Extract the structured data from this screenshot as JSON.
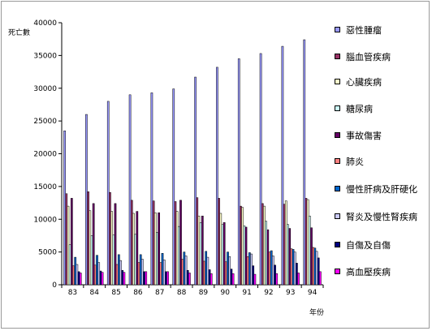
{
  "chart_data": {
    "type": "bar",
    "ylabel": "死亡數",
    "xlabel": "年份",
    "ylim": [
      0,
      40000
    ],
    "yticks": [
      0,
      5000,
      10000,
      15000,
      20000,
      25000,
      30000,
      35000,
      40000
    ],
    "grid": false,
    "legend_position": "right",
    "categories": [
      "83",
      "84",
      "85",
      "86",
      "87",
      "88",
      "89",
      "90",
      "91",
      "92",
      "93",
      "94"
    ],
    "series": [
      {
        "name": "惡性腫瘤",
        "color": "#9999ff",
        "values": [
          23500,
          26000,
          28000,
          29000,
          29300,
          29900,
          31700,
          33200,
          34500,
          35300,
          36400,
          37400
        ]
      },
      {
        "name": "腦血管疾病",
        "color": "#993366",
        "values": [
          13900,
          14200,
          14100,
          12900,
          12800,
          12700,
          13300,
          13200,
          12000,
          12400,
          12300,
          13200
        ]
      },
      {
        "name": "心臟疾病",
        "color": "#ffffcc",
        "values": [
          12000,
          11300,
          11200,
          10900,
          11000,
          11200,
          10500,
          10900,
          11800,
          12000,
          12800,
          13000
        ]
      },
      {
        "name": "糖尿病",
        "color": "#ccffff",
        "values": [
          6100,
          7500,
          7600,
          7700,
          8000,
          8900,
          9500,
          9200,
          9000,
          9700,
          9200,
          10500
        ]
      },
      {
        "name": "事故傷害",
        "color": "#660066",
        "values": [
          13200,
          12400,
          12400,
          11200,
          11000,
          12900,
          10500,
          9500,
          8800,
          8400,
          8600,
          8700
        ]
      },
      {
        "name": "肺炎",
        "color": "#ff8080",
        "values": [
          2900,
          3000,
          3100,
          3400,
          3400,
          3900,
          3600,
          3500,
          4300,
          5000,
          5500,
          5700
        ]
      },
      {
        "name": "慢性肝病及肝硬化",
        "color": "#0066cc",
        "values": [
          4200,
          4500,
          4600,
          4600,
          4800,
          5000,
          5100,
          5000,
          4900,
          5200,
          5400,
          5600
        ]
      },
      {
        "name": "腎炎及慢性腎疾病",
        "color": "#ccccff",
        "values": [
          3100,
          3400,
          3700,
          3900,
          3800,
          4400,
          4200,
          4300,
          4700,
          4400,
          5000,
          5100
        ]
      },
      {
        "name": "自傷及自傷",
        "color": "#000080",
        "values": [
          2000,
          2100,
          2200,
          2000,
          2000,
          2200,
          2300,
          2400,
          2900,
          3000,
          3300,
          4100
        ]
      },
      {
        "name": "高血壓疾病",
        "color": "#ff00ff",
        "values": [
          1800,
          1900,
          1900,
          2000,
          2000,
          1800,
          1700,
          1700,
          1600,
          1700,
          1800,
          2000
        ]
      }
    ]
  }
}
